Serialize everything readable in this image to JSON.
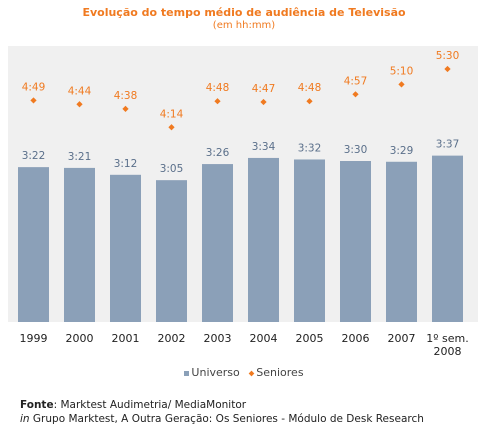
{
  "header": {
    "title": "Evolução do tempo médio de audiência de Televisão",
    "subtitle": "(em hh:mm)"
  },
  "legend": {
    "universo": "Universo",
    "seniores": "Seniores"
  },
  "source": {
    "label": "Fonte",
    "text": ": Marktest Audimetria/ MediaMonitor",
    "line2_prefix": "in",
    "line2_text": " Grupo Marktest, A Outra Geração: Os Seniores - Módulo de Desk Research"
  },
  "colors": {
    "bar": "#8ba0b8",
    "marker": "#f07a20",
    "panel": "#f0f0f0",
    "title": "#f07a20"
  },
  "chart_data": {
    "type": "bar",
    "title": "Evolução do tempo médio de audiência de Televisão",
    "subtitle": "(em hh:mm)",
    "categories": [
      "1999",
      "2000",
      "2001",
      "2002",
      "2003",
      "2004",
      "2005",
      "2006",
      "2007",
      "1º sem. 2008"
    ],
    "ylim": [
      0,
      360
    ],
    "grid": false,
    "legend_position": "bottom",
    "series": [
      {
        "name": "Universo",
        "kind": "bar",
        "values": [
          202,
          201,
          192,
          185,
          206,
          214,
          212,
          210,
          209,
          217
        ],
        "labels": [
          "3:22",
          "3:21",
          "3:12",
          "3:05",
          "3:26",
          "3:34",
          "3:32",
          "3:30",
          "3:29",
          "3:37"
        ]
      },
      {
        "name": "Seniores",
        "kind": "marker",
        "values": [
          289,
          284,
          278,
          254,
          288,
          287,
          288,
          297,
          310,
          330
        ],
        "labels": [
          "4:49",
          "4:44",
          "4:38",
          "4:14",
          "4:48",
          "4:47",
          "4:48",
          "4:57",
          "5:10",
          "5:30"
        ]
      }
    ]
  }
}
